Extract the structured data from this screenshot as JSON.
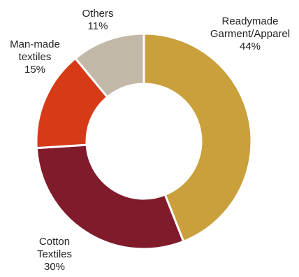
{
  "chart_data": {
    "type": "pie",
    "donut": true,
    "title": "",
    "legend": "none",
    "slices": [
      {
        "label_lines": [
          "Readymade",
          "Garment/Apparel"
        ],
        "value": 44,
        "value_label": "44%",
        "color": "#C9A03C"
      },
      {
        "label_lines": [
          "Cotton",
          "Textiles"
        ],
        "value": 30,
        "value_label": "30%",
        "color": "#801B2B"
      },
      {
        "label_lines": [
          "Man-made",
          "textiles"
        ],
        "value": 15,
        "value_label": "15%",
        "color": "#D63A17"
      },
      {
        "label_lines": [
          "Others"
        ],
        "value": 11,
        "value_label": "11%",
        "color": "#C2B8A8"
      }
    ]
  }
}
